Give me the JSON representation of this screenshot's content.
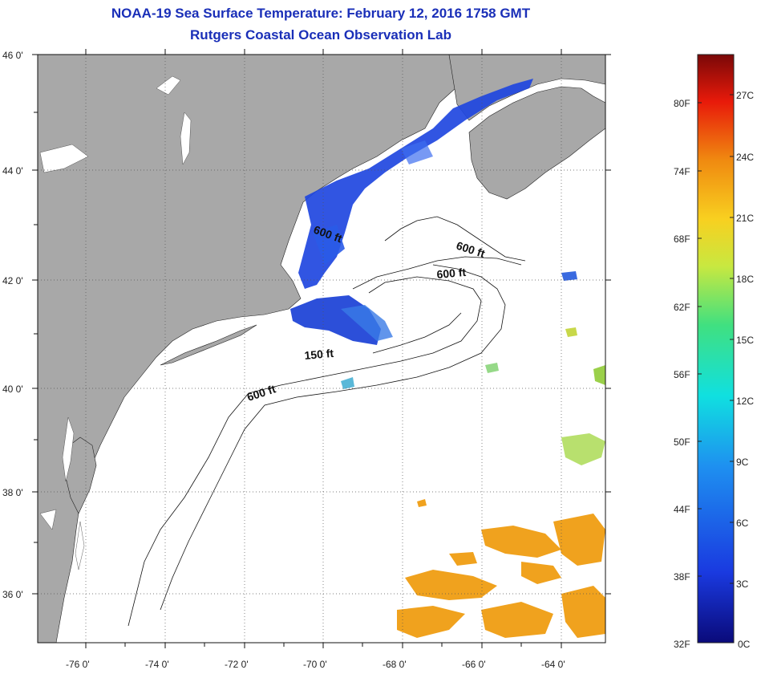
{
  "title": {
    "line1": "NOAA-19 Sea Surface Temperature:  February 12, 2016 1758 GMT",
    "line2": "Rutgers Coastal Ocean Observation Lab"
  },
  "map": {
    "lat_labels": [
      "46 0'",
      "44 0'",
      "42 0'",
      "40 0'",
      "38 0'",
      "36 0'"
    ],
    "lon_labels": [
      "-76 0'",
      "-74 0'",
      "-72 0'",
      "-70 0'",
      "-68 0'",
      "-66 0'",
      "-64 0'"
    ],
    "isobath_labels": [
      "600 ft",
      "600 ft",
      "600 ft",
      "150 ft",
      "600 ft"
    ],
    "land_color": "#a8a8a8",
    "water_color": "#ffffff"
  },
  "colorbar": {
    "fahrenheit_labels": [
      "80F",
      "74F",
      "68F",
      "62F",
      "56F",
      "50F",
      "44F",
      "38F",
      "32F"
    ],
    "celsius_labels": [
      "27C",
      "24C",
      "21C",
      "18C",
      "15C",
      "12C",
      "9C",
      "6C",
      "3C",
      "0C"
    ]
  }
}
